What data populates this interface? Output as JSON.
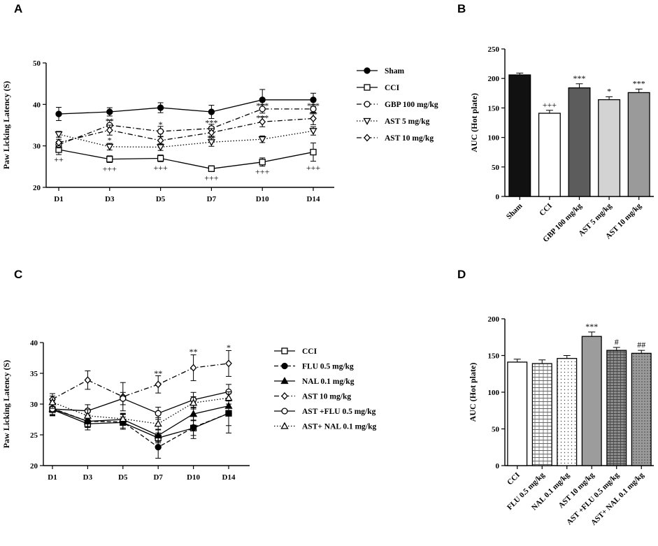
{
  "chart_data": [
    {
      "panel": "A",
      "type": "line",
      "ylabel": "Paw Licking Latency (S)",
      "xlabel": "",
      "ylim": [
        20,
        50
      ],
      "yticks": [
        20,
        30,
        40,
        50
      ],
      "categories": [
        "D1",
        "D3",
        "D5",
        "D7",
        "D10",
        "D14"
      ],
      "legend_position": "right",
      "series": [
        {
          "name": "Sham",
          "marker": "filled-circle",
          "line": "solid",
          "values": [
            37.7,
            38.2,
            39.2,
            38.2,
            41.1,
            41.1
          ],
          "err": [
            1.6,
            1.0,
            1.2,
            1.6,
            2.5,
            1.6
          ]
        },
        {
          "name": "CCI",
          "marker": "open-square",
          "line": "solid",
          "values": [
            29.1,
            26.8,
            27.0,
            24.5,
            26.1,
            28.5
          ],
          "err": [
            1.2,
            0.8,
            0.8,
            0.7,
            1.0,
            2.2
          ]
        },
        {
          "name": "GBP 100 mg/kg",
          "marker": "open-circle",
          "line": "dash-dot",
          "values": [
            30.3,
            35.0,
            33.5,
            34.2,
            38.9,
            38.9
          ],
          "err": [
            0.8,
            1.2,
            1.2,
            1.0,
            1.0,
            1.0
          ]
        },
        {
          "name": "AST 5 mg/kg",
          "marker": "open-triangle-down",
          "line": "dotted",
          "values": [
            32.8,
            29.8,
            29.7,
            30.9,
            31.6,
            33.6
          ],
          "err": [
            0.7,
            0.8,
            0.8,
            1.0,
            0.8,
            1.0
          ]
        },
        {
          "name": "AST 10 mg/kg",
          "marker": "open-diamond",
          "line": "dash-dot",
          "values": [
            30.8,
            33.8,
            31.3,
            33.2,
            35.8,
            36.6
          ],
          "err": [
            0.8,
            1.2,
            0.9,
            1.0,
            1.2,
            1.5
          ]
        }
      ],
      "annotations": [
        {
          "text": "++",
          "category": "D1",
          "y": 26.7
        },
        {
          "text": "+++",
          "category": "D3",
          "y": 24.5
        },
        {
          "text": "+++",
          "category": "D5",
          "y": 24.7
        },
        {
          "text": "+++",
          "category": "D7",
          "y": 22.3
        },
        {
          "text": "+++",
          "category": "D10",
          "y": 23.8
        },
        {
          "text": "+++",
          "category": "D14",
          "y": 24.7
        },
        {
          "text": "**",
          "category": "D3",
          "y": 36.0
        },
        {
          "text": "*",
          "category": "D3",
          "y": 31.4
        },
        {
          "text": "*",
          "category": "D5",
          "y": 35.2
        },
        {
          "text": "***",
          "category": "D7",
          "y": 35.6
        },
        {
          "text": "**",
          "category": "D7",
          "y": 32.0
        },
        {
          "text": "***",
          "category": "D10",
          "y": 39.7
        },
        {
          "text": "***",
          "category": "D10",
          "y": 36.8
        },
        {
          "text": "***",
          "category": "D14",
          "y": 39.7
        },
        {
          "text": "**",
          "category": "D14",
          "y": 37.6
        }
      ]
    },
    {
      "panel": "B",
      "type": "bar",
      "ylabel": "AUC (Hot plate)",
      "xlabel": "",
      "ylim": [
        0,
        250
      ],
      "yticks": [
        0,
        50,
        100,
        150,
        200,
        250
      ],
      "categories": [
        "Sham",
        "CCI",
        "GBP 100 mg/kg",
        "AST 5 mg/kg",
        "AST 10 mg/kg"
      ],
      "values": [
        206,
        141,
        184,
        164,
        176
      ],
      "err": [
        3,
        5,
        7,
        5,
        6
      ],
      "fills": [
        "#111111",
        "#ffffff",
        "#5c5c5c",
        "#d3d3d3",
        "#9a9a9a"
      ],
      "labels": [
        "",
        "+++",
        "***",
        "*",
        "***"
      ]
    },
    {
      "panel": "C",
      "type": "line",
      "ylabel": "Paw Licking Latency (S)",
      "xlabel": "",
      "ylim": [
        20,
        40
      ],
      "yticks": [
        20,
        25,
        30,
        35,
        40
      ],
      "categories": [
        "D1",
        "D3",
        "D5",
        "D7",
        "D10",
        "D14"
      ],
      "legend_position": "right",
      "series": [
        {
          "name": "CCI",
          "marker": "open-square",
          "line": "solid",
          "values": [
            29.1,
            26.8,
            27.0,
            24.5,
            26.1,
            28.5
          ],
          "err": [
            1.0,
            1.0,
            0.9,
            0.8,
            1.2,
            2.0
          ]
        },
        {
          "name": "FLU 0.5 mg/kg",
          "marker": "filled-circle",
          "line": "dashed",
          "values": [
            29.3,
            27.2,
            27.1,
            23.0,
            26.2,
            28.5
          ],
          "err": [
            1.2,
            1.0,
            1.2,
            1.8,
            1.8,
            3.2
          ]
        },
        {
          "name": "NAL 0.1 mg/kg",
          "marker": "filled-triangle",
          "line": "solid",
          "values": [
            29.2,
            27.2,
            27.5,
            24.9,
            28.4,
            29.7
          ],
          "err": [
            0.9,
            1.0,
            0.9,
            1.0,
            1.0,
            1.0
          ]
        },
        {
          "name": "AST 10 mg/kg",
          "marker": "open-diamond",
          "line": "dash-dot",
          "values": [
            30.8,
            33.9,
            31.2,
            33.2,
            35.9,
            36.6
          ],
          "err": [
            0.9,
            1.5,
            2.3,
            1.4,
            2.1,
            2.1
          ]
        },
        {
          "name": "AST +FLU 0.5 mg/kg",
          "marker": "open-circle",
          "line": "solid",
          "values": [
            29.2,
            28.9,
            30.9,
            28.5,
            30.7,
            32.0
          ],
          "err": [
            1.0,
            1.0,
            1.0,
            1.0,
            1.2,
            1.2
          ]
        },
        {
          "name": "AST+ NAL 0.1 mg/kg",
          "marker": "open-triangle",
          "line": "dotted",
          "values": [
            30.3,
            28.1,
            27.6,
            26.8,
            30.2,
            31.0
          ],
          "err": [
            1.0,
            1.0,
            0.9,
            1.0,
            1.0,
            1.0
          ]
        }
      ],
      "annotations": [
        {
          "text": "**",
          "category": "D7",
          "y": 35.0
        },
        {
          "text": "**",
          "category": "D10",
          "y": 38.5
        },
        {
          "text": "*",
          "category": "D14",
          "y": 39.2
        }
      ]
    },
    {
      "panel": "D",
      "type": "bar",
      "ylabel": "AUC (Hot plate)",
      "xlabel": "",
      "ylim": [
        0,
        200
      ],
      "yticks": [
        0,
        50,
        100,
        150,
        200
      ],
      "categories": [
        "CCI",
        "FLU 0.5 mg/kg",
        "NAL 0.1 mg/kg",
        "AST 10 mg/kg",
        "AST +FLU 0.5 mg/kg",
        "AST+ NAL 0.1 mg/kg"
      ],
      "values": [
        141,
        139,
        146,
        176,
        157,
        153
      ],
      "err": [
        4,
        5,
        4,
        6,
        4,
        4
      ],
      "fills": [
        "white",
        "brick",
        "dots",
        "#9c9c9c",
        "dense-brick",
        "dense-dots"
      ],
      "labels": [
        "",
        "",
        "",
        "***",
        "#",
        "##"
      ]
    }
  ]
}
